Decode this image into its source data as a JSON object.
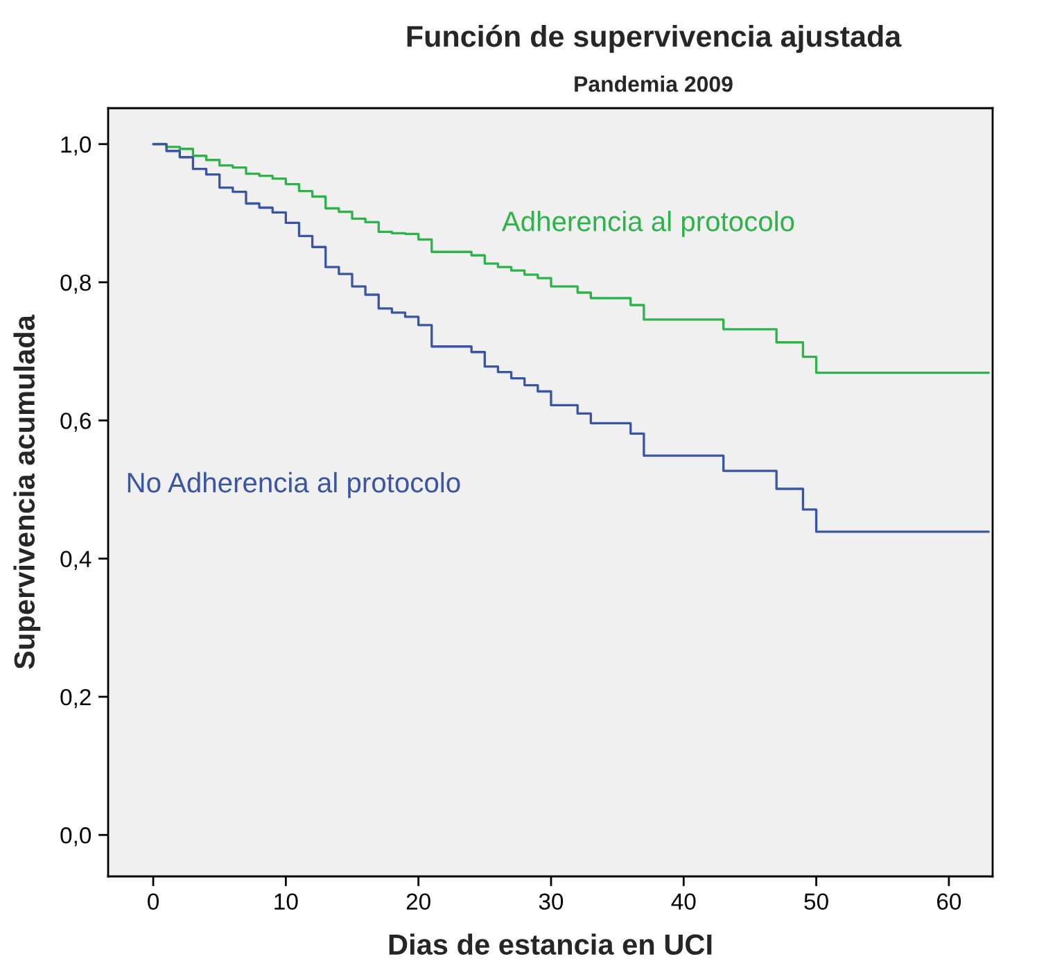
{
  "chart_data": {
    "type": "step",
    "title": "Función de supervivencia ajustada",
    "subtitle": "Pandemia 2009",
    "xlabel": "Dias de estancia en UCI",
    "ylabel": "Supervivencia acumulada",
    "xlim": [
      -3.4,
      63.3
    ],
    "ylim": [
      -0.06,
      1.052
    ],
    "xticks": [
      0,
      10,
      20,
      30,
      40,
      50,
      60
    ],
    "yticks": [
      {
        "value": 0,
        "label": "0,0"
      },
      {
        "value": 0.2,
        "label": "0,2"
      },
      {
        "value": 0.4,
        "label": "0,4"
      },
      {
        "value": 0.6,
        "label": "0,6"
      },
      {
        "value": 0.8,
        "label": "0,8"
      },
      {
        "value": 1.0,
        "label": "1,0"
      }
    ],
    "grid": false,
    "legend": false,
    "series": [
      {
        "name": "Adherencia al protocolo",
        "color": "#2db34a",
        "x": [
          0,
          1,
          2,
          3,
          4,
          5,
          6,
          7,
          8,
          9,
          10,
          11,
          12,
          13,
          14,
          15,
          16,
          17,
          18,
          19,
          20,
          21,
          24,
          25,
          26,
          27,
          28,
          29,
          30,
          32,
          33,
          36,
          37,
          43,
          47,
          49,
          50,
          63
        ],
        "values": [
          1.0,
          0.996,
          0.993,
          0.983,
          0.977,
          0.969,
          0.966,
          0.957,
          0.954,
          0.95,
          0.942,
          0.932,
          0.924,
          0.907,
          0.902,
          0.892,
          0.887,
          0.873,
          0.871,
          0.87,
          0.862,
          0.844,
          0.839,
          0.827,
          0.822,
          0.817,
          0.811,
          0.806,
          0.794,
          0.785,
          0.777,
          0.767,
          0.746,
          0.732,
          0.713,
          0.692,
          0.669,
          0.669
        ]
      },
      {
        "name": "No Adherencia al protocolo",
        "color": "#3a55a4",
        "x": [
          0,
          1,
          2,
          3,
          4,
          5,
          6,
          7,
          8,
          9,
          10,
          11,
          12,
          13,
          14,
          15,
          16,
          17,
          18,
          19,
          20,
          21,
          24,
          25,
          26,
          27,
          28,
          29,
          30,
          32,
          33,
          36,
          37,
          43,
          47,
          49,
          50,
          63
        ],
        "values": [
          1.0,
          0.99,
          0.981,
          0.964,
          0.956,
          0.937,
          0.931,
          0.914,
          0.908,
          0.901,
          0.886,
          0.867,
          0.851,
          0.822,
          0.812,
          0.794,
          0.782,
          0.762,
          0.756,
          0.75,
          0.738,
          0.707,
          0.699,
          0.678,
          0.67,
          0.661,
          0.651,
          0.642,
          0.622,
          0.61,
          0.596,
          0.581,
          0.549,
          0.527,
          0.501,
          0.471,
          0.439,
          0.439
        ]
      }
    ]
  }
}
